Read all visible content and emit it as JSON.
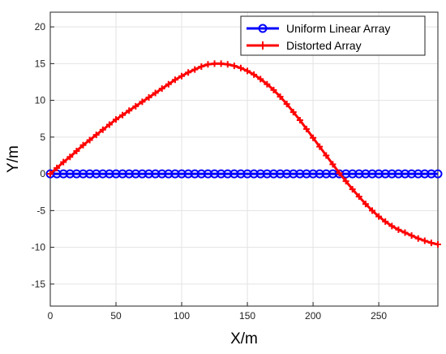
{
  "chart_data": {
    "type": "line",
    "xlabel": "X/m",
    "ylabel": "Y/m",
    "xlim": [
      0,
      295
    ],
    "ylim": [
      -18,
      22
    ],
    "xticks": [
      0,
      50,
      100,
      150,
      200,
      250
    ],
    "yticks": [
      -15,
      -10,
      -5,
      0,
      5,
      10,
      15,
      20
    ],
    "grid": true,
    "legend_position": "top-right",
    "series": [
      {
        "name": "Uniform Linear Array",
        "color": "#0000ff",
        "marker": "circle",
        "x": [
          0,
          5,
          10,
          15,
          20,
          25,
          30,
          35,
          40,
          45,
          50,
          55,
          60,
          65,
          70,
          75,
          80,
          85,
          90,
          95,
          100,
          105,
          110,
          115,
          120,
          125,
          130,
          135,
          140,
          145,
          150,
          155,
          160,
          165,
          170,
          175,
          180,
          185,
          190,
          195,
          200,
          205,
          210,
          215,
          220,
          225,
          230,
          235,
          240,
          245,
          250,
          255,
          260,
          265,
          270,
          275,
          280,
          285,
          290,
          295
        ],
        "y": [
          0,
          0,
          0,
          0,
          0,
          0,
          0,
          0,
          0,
          0,
          0,
          0,
          0,
          0,
          0,
          0,
          0,
          0,
          0,
          0,
          0,
          0,
          0,
          0,
          0,
          0,
          0,
          0,
          0,
          0,
          0,
          0,
          0,
          0,
          0,
          0,
          0,
          0,
          0,
          0,
          0,
          0,
          0,
          0,
          0,
          0,
          0,
          0,
          0,
          0,
          0,
          0,
          0,
          0,
          0,
          0,
          0,
          0,
          0,
          0
        ]
      },
      {
        "name": "Distorted Array",
        "color": "#ff0000",
        "marker": "plus",
        "x": [
          0,
          5,
          10,
          15,
          20,
          25,
          30,
          35,
          40,
          45,
          50,
          55,
          60,
          65,
          70,
          75,
          80,
          85,
          90,
          95,
          100,
          105,
          110,
          115,
          120,
          125,
          130,
          135,
          140,
          145,
          150,
          155,
          160,
          165,
          170,
          175,
          180,
          185,
          190,
          195,
          200,
          205,
          210,
          215,
          220,
          225,
          230,
          235,
          240,
          245,
          250,
          255,
          260,
          265,
          270,
          275,
          280,
          285,
          290,
          295
        ],
        "y": [
          0,
          0.8,
          1.6,
          2.3,
          3.1,
          3.9,
          4.6,
          5.3,
          6.0,
          6.7,
          7.4,
          8.0,
          8.6,
          9.2,
          9.8,
          10.4,
          11.0,
          11.6,
          12.2,
          12.8,
          13.3,
          13.8,
          14.2,
          14.6,
          14.9,
          15.0,
          15.0,
          14.9,
          14.7,
          14.4,
          14.0,
          13.5,
          12.9,
          12.2,
          11.4,
          10.5,
          9.5,
          8.4,
          7.3,
          6.1,
          4.9,
          3.7,
          2.5,
          1.3,
          0.1,
          -1.0,
          -2.1,
          -3.1,
          -4.1,
          -5.0,
          -5.8,
          -6.5,
          -7.1,
          -7.6,
          -8.0,
          -8.4,
          -8.8,
          -9.1,
          -9.4,
          -9.6
        ]
      }
    ]
  }
}
